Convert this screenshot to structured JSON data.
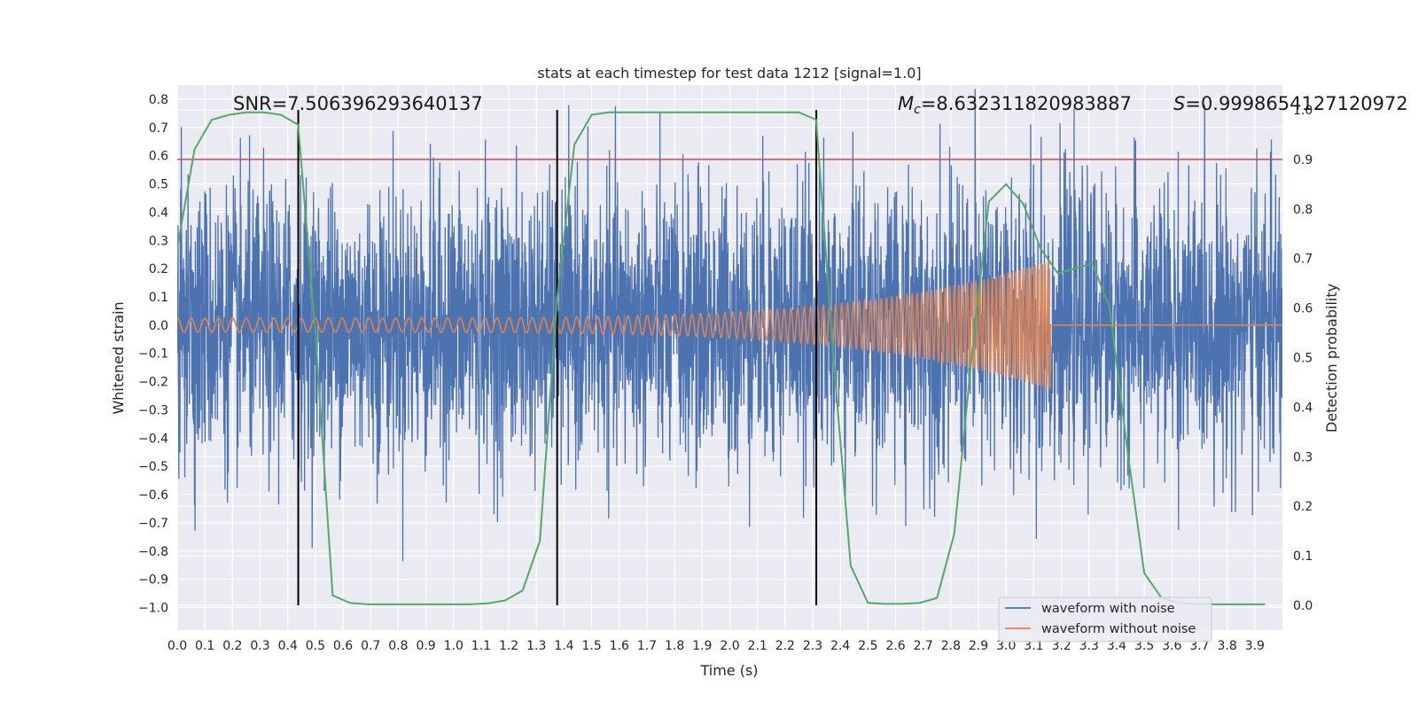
{
  "chart_data": {
    "type": "line",
    "title": "stats at each timestep for test data 1212 [signal=1.0]",
    "xlabel": "Time (s)",
    "ylabel": "Whitened strain",
    "ylabel_right": "Detection probability",
    "xlim": [
      0.0,
      4.0
    ],
    "ylim": [
      -1.08,
      0.85
    ],
    "ylim_right": [
      -0.05,
      1.05
    ],
    "x_ticks": [
      "0.0",
      "0.1",
      "0.2",
      "0.3",
      "0.4",
      "0.5",
      "0.6",
      "0.7",
      "0.8",
      "0.9",
      "1.0",
      "1.1",
      "1.2",
      "1.3",
      "1.4",
      "1.5",
      "1.6",
      "1.7",
      "1.8",
      "1.9",
      "2.0",
      "2.1",
      "2.2",
      "2.3",
      "2.4",
      "2.5",
      "2.6",
      "2.7",
      "2.8",
      "2.9",
      "3.0",
      "3.1",
      "3.2",
      "3.3",
      "3.4",
      "3.5",
      "3.6",
      "3.7",
      "3.8",
      "3.9"
    ],
    "y_ticks": [
      "0.8",
      "0.7",
      "0.6",
      "0.5",
      "0.4",
      "0.3",
      "0.2",
      "0.1",
      "0.0",
      "−0.1",
      "−0.2",
      "−0.3",
      "−0.4",
      "−0.5",
      "−0.6",
      "−0.7",
      "−0.8",
      "−0.9",
      "−1.0"
    ],
    "y_ticks_right": [
      "1.0",
      "0.9",
      "0.8",
      "0.7",
      "0.6",
      "0.5",
      "0.4",
      "0.3",
      "0.2",
      "0.1",
      "0.0"
    ],
    "annotations": {
      "snr": "SNR=7.506396293640137",
      "mc_symbol": "M",
      "mc_sub": "c",
      "mc_value": "=8.632311820983887",
      "s_symbol": "S",
      "s_value": "=0.9998654127120972"
    },
    "threshold_right": 0.9,
    "vertical_lines_x": [
      0.438,
      1.375,
      2.313
    ],
    "series": [
      {
        "name": "waveform with noise",
        "color": "#4c72b0"
      },
      {
        "name": "waveform without noise",
        "color": "#dd8452",
        "amplitude_start": 0.025,
        "amplitude_end": 0.23,
        "freq_start_hz": 20,
        "freq_end_hz": 95,
        "merger_time": 3.16
      },
      {
        "name": "detection probability",
        "color": "#55a868",
        "x": [
          0.0,
          0.0625,
          0.125,
          0.1875,
          0.25,
          0.3125,
          0.375,
          0.4375,
          0.5,
          0.5625,
          0.625,
          0.6875,
          0.75,
          0.8125,
          0.875,
          0.9375,
          1.0,
          1.0625,
          1.125,
          1.1875,
          1.25,
          1.3125,
          1.375,
          1.4375,
          1.5,
          1.5625,
          1.625,
          1.6875,
          1.75,
          1.8125,
          1.875,
          1.9375,
          2.0,
          2.0625,
          2.125,
          2.1875,
          2.25,
          2.3125,
          2.375,
          2.4375,
          2.5,
          2.5625,
          2.625,
          2.6875,
          2.75,
          2.8125,
          2.875,
          2.9375,
          3.0,
          3.0625,
          3.125,
          3.1875,
          3.25,
          3.3125,
          3.375,
          3.4375,
          3.5,
          3.5625,
          3.625,
          3.6875,
          3.75,
          3.8125,
          3.875,
          3.9375
        ],
        "y": [
          0.72,
          0.92,
          0.98,
          0.99,
          0.995,
          0.995,
          0.99,
          0.97,
          0.55,
          0.02,
          0.005,
          0.002,
          0.002,
          0.002,
          0.002,
          0.002,
          0.002,
          0.002,
          0.004,
          0.01,
          0.03,
          0.13,
          0.62,
          0.93,
          0.99,
          0.995,
          0.995,
          0.995,
          0.995,
          0.995,
          0.995,
          0.995,
          0.995,
          0.995,
          0.995,
          0.995,
          0.995,
          0.98,
          0.5,
          0.08,
          0.005,
          0.003,
          0.003,
          0.005,
          0.015,
          0.145,
          0.5,
          0.815,
          0.85,
          0.81,
          0.72,
          0.67,
          0.68,
          0.69,
          0.6,
          0.32,
          0.065,
          0.015,
          0.005,
          0.003,
          0.002,
          0.002,
          0.002,
          0.002
        ]
      }
    ],
    "colors": {
      "background": "#eaeaf2",
      "grid": "#ffffff",
      "threshold": "#c44e52",
      "vertical_lines": "#000000"
    }
  }
}
